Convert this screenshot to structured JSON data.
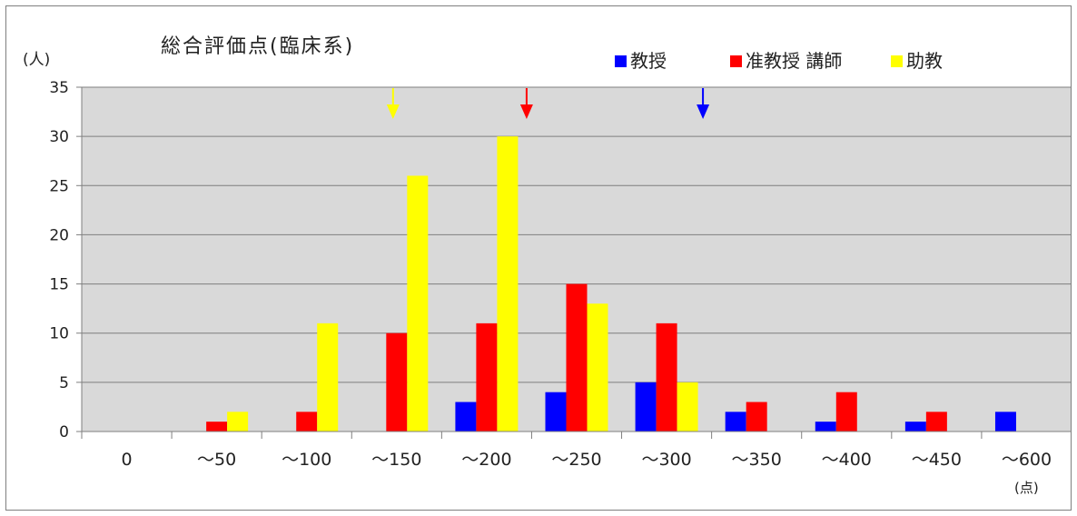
{
  "chart_data": {
    "type": "bar",
    "title": "総合評価点(臨床系)",
    "ylabel": "(人)",
    "xlabel": "(点)",
    "ylim": [
      0,
      35
    ],
    "yticks": [
      0,
      5,
      10,
      15,
      20,
      25,
      30,
      35
    ],
    "categories": [
      "0",
      "～50",
      "～100",
      "～150",
      "～200",
      "～250",
      "～300",
      "～350",
      "～400",
      "～450",
      "～600"
    ],
    "series": [
      {
        "name": "教授",
        "color": "#0000ff",
        "values": [
          0,
          0,
          0,
          0,
          3,
          4,
          5,
          2,
          1,
          1,
          2
        ]
      },
      {
        "name": "准教授 講師",
        "color": "#ff0000",
        "values": [
          0,
          1,
          2,
          10,
          11,
          15,
          11,
          3,
          4,
          2,
          0
        ]
      },
      {
        "name": "助教",
        "color": "#ffff00",
        "values": [
          0,
          2,
          11,
          26,
          30,
          13,
          5,
          0,
          0,
          0,
          0
        ]
      }
    ],
    "legend_position": "top-right",
    "grid": true,
    "plot_background": "#d9d9d9",
    "annotations": [
      {
        "type": "arrow",
        "color": "#ffff00",
        "category": "～150",
        "series": "助教"
      },
      {
        "type": "arrow",
        "color": "#ff0000",
        "category": "～200",
        "series": "准教授 講師"
      },
      {
        "type": "arrow",
        "color": "#0000ff",
        "category": "～300",
        "series": "教授"
      }
    ]
  }
}
